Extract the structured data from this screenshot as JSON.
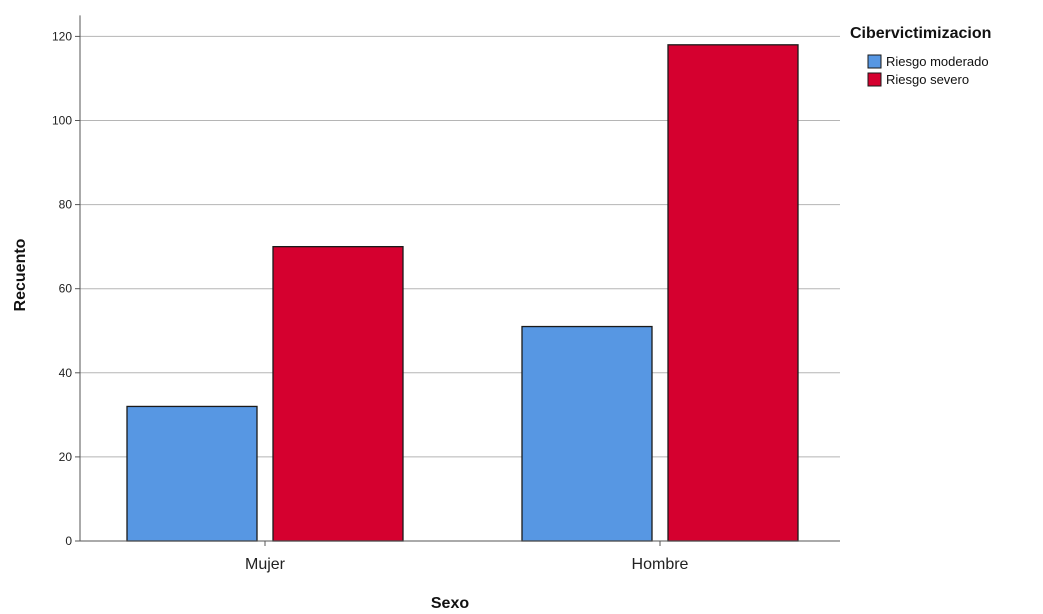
{
  "chart_data": {
    "type": "bar",
    "categories": [
      "Mujer",
      "Hombre"
    ],
    "series": [
      {
        "name": "Riesgo moderado",
        "values": [
          32,
          51
        ],
        "color": "#5797e3"
      },
      {
        "name": "Riesgo severo",
        "values": [
          70,
          118
        ],
        "color": "#d5002f"
      }
    ],
    "title": "",
    "xlabel": "Sexo",
    "ylabel": "Recuento",
    "ylim": [
      0,
      125
    ],
    "yticks": [
      0,
      20,
      40,
      60,
      80,
      100,
      120
    ],
    "grid": true,
    "legend": {
      "title": "Cibervictimizacion",
      "position": "top-right"
    }
  }
}
